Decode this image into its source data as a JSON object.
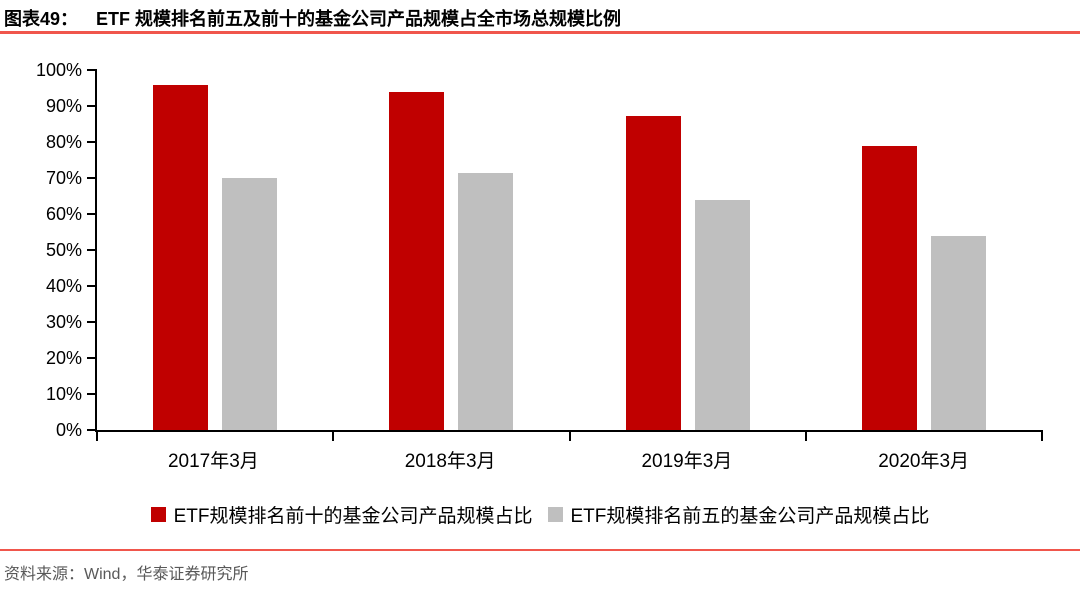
{
  "header": {
    "figure_label": "图表49：",
    "title": "ETF 规模排名前五及前十的基金公司产品规模占全市场总规模比例"
  },
  "footer": {
    "source": "资料来源：Wind，华泰证券研究所"
  },
  "colors": {
    "bar_red": "#c00000",
    "bar_gray": "#bfbfbf",
    "divider_red": "#f0564c",
    "axis_black": "#000000",
    "footer_gray": "#595959"
  },
  "chart_data": {
    "type": "bar",
    "title": "ETF 规模排名前五及前十的基金公司产品规模占全市场总规模比例",
    "categories": [
      "2017年3月",
      "2018年3月",
      "2019年3月",
      "2020年3月"
    ],
    "series": [
      {
        "name": "ETF规模排名前十的基金公司产品规模占比",
        "color": "#c00000",
        "values": [
          95.7,
          93.8,
          87.2,
          79.0
        ]
      },
      {
        "name": "ETF规模排名前五的基金公司产品规模占比",
        "color": "#bfbfbf",
        "values": [
          70.0,
          71.5,
          63.8,
          54.0
        ]
      }
    ],
    "xlabel": "",
    "ylabel": "",
    "ylim": [
      0,
      100
    ],
    "ytick_step": 10,
    "ytick_labels": [
      "100%",
      "90%",
      "80%",
      "70%",
      "60%",
      "50%",
      "40%",
      "30%",
      "20%",
      "10%",
      "0%"
    ],
    "grid": false,
    "legend_position": "bottom"
  }
}
